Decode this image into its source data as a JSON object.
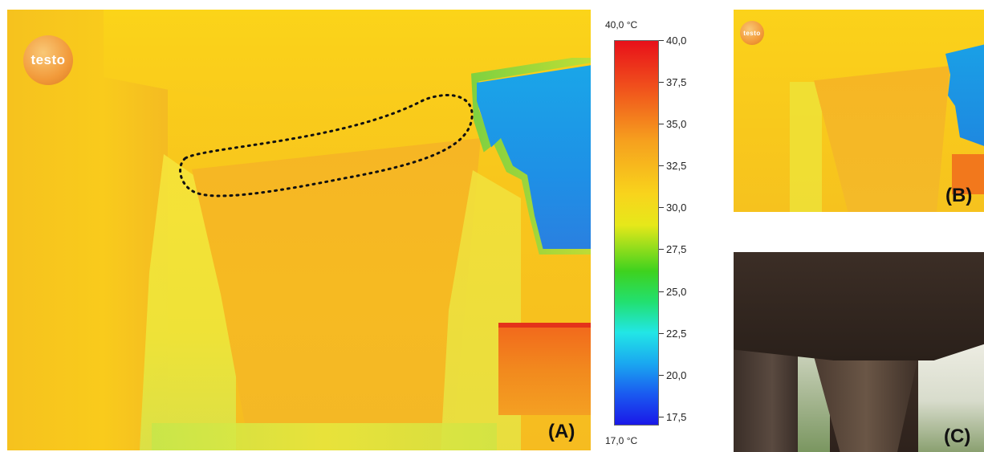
{
  "panels": {
    "a": {
      "label": "(A)",
      "logo": "testo"
    },
    "b": {
      "label": "(B)",
      "logo": "testo"
    },
    "c": {
      "label": "(C)"
    }
  },
  "scale": {
    "max_label": "40,0 °C",
    "min_label": "17,0 °C",
    "min": 17.0,
    "max": 40.0,
    "ticks": [
      "40,0",
      "37,5",
      "35,0",
      "32,5",
      "30,0",
      "27,5",
      "25,0",
      "22,5",
      "20,0",
      "17,5"
    ],
    "tick_values": [
      40.0,
      37.5,
      35.0,
      32.5,
      30.0,
      27.5,
      25.0,
      22.5,
      20.0,
      17.5
    ]
  },
  "colors": {
    "hot": "#e8101a",
    "warm": "#f8d41c",
    "mid": "#3ed21e",
    "cool": "#22e6e6",
    "cold": "#1a18e8"
  }
}
